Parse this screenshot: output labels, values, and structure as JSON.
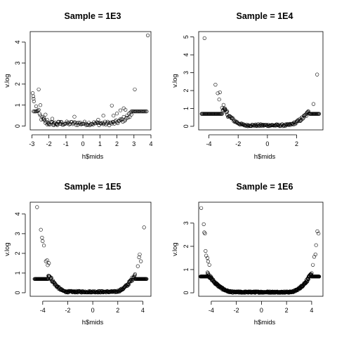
{
  "colors": {
    "background": "#ffffff",
    "ink": "#000000"
  },
  "chart_data": [
    {
      "type": "scatter",
      "title": "Sample = 1E3",
      "xlabel": "h$mids",
      "ylabel": "v.log",
      "xlim": [
        -3.1,
        4.0
      ],
      "ylim": [
        -0.18,
        4.5
      ],
      "xticks": [
        -3,
        -2,
        -1,
        0,
        1,
        2,
        3,
        4
      ],
      "yticks": [
        0,
        1,
        2,
        3,
        4
      ],
      "bin_width": 0.05,
      "edges": {
        "left_x": -2.9,
        "left_x_end": -2.75,
        "right_x": 2.85,
        "right_x_end": 3.75,
        "y": 0.7
      },
      "noise_amp": 0.3,
      "curve": {
        "base": 0.13,
        "left_start": -2.0,
        "left_scale": 0.75,
        "right_start": 1.5,
        "right_scale": 0.45
      },
      "points": [
        [
          -2.95,
          1.57
        ],
        [
          -2.92,
          1.42
        ],
        [
          -2.9,
          1.3
        ],
        [
          -2.88,
          1.18
        ],
        [
          -2.6,
          1.75
        ],
        [
          -2.5,
          1.0
        ],
        [
          -2.3,
          0.4
        ],
        [
          -2.2,
          0.55
        ],
        [
          -2.1,
          0.3
        ],
        [
          -2.0,
          0.12
        ],
        [
          -1.8,
          0.35
        ],
        [
          -1.7,
          0.05
        ],
        [
          -1.5,
          0.05
        ],
        [
          -1.3,
          0.2
        ],
        [
          -0.5,
          0.45
        ],
        [
          0.9,
          0.3
        ],
        [
          1.2,
          0.5
        ],
        [
          1.7,
          0.98
        ],
        [
          1.8,
          0.5
        ],
        [
          2.0,
          0.6
        ],
        [
          2.2,
          0.75
        ],
        [
          2.4,
          0.85
        ],
        [
          2.5,
          0.78
        ],
        [
          3.05,
          1.75
        ],
        [
          3.82,
          4.32
        ]
      ]
    },
    {
      "type": "scatter",
      "title": "Sample = 1E4",
      "xlabel": "h$mids",
      "ylabel": "v.log",
      "xlim": [
        -4.7,
        3.8
      ],
      "ylim": [
        -0.2,
        5.3
      ],
      "xticks": [
        -4,
        -2,
        0,
        2
      ],
      "yticks": [
        0,
        1,
        2,
        3,
        4,
        5
      ],
      "bin_width": 0.04,
      "edges": {
        "left_x": -4.5,
        "left_x_end": -3.1,
        "right_x": 2.9,
        "right_x_end": 3.55,
        "y": 0.7
      },
      "noise_amp": 0.2,
      "curve": {
        "base": 0.06,
        "left_start": -1.4,
        "left_scale": 1.0,
        "right_start": 1.2,
        "right_scale": 0.8
      },
      "points": [
        [
          -4.3,
          4.93
        ],
        [
          -3.55,
          2.33
        ],
        [
          -3.4,
          1.85
        ],
        [
          -3.25,
          1.9
        ],
        [
          -3.3,
          1.5
        ],
        [
          -3.0,
          1.2
        ],
        [
          -2.9,
          1.0
        ],
        [
          -2.75,
          0.85
        ],
        [
          2.8,
          0.85
        ],
        [
          3.15,
          1.25
        ],
        [
          3.4,
          2.9
        ]
      ]
    },
    {
      "type": "scatter",
      "title": "Sample = 1E5",
      "xlabel": "h$mids",
      "ylabel": "v.log",
      "xlim": [
        -5.0,
        4.65
      ],
      "ylim": [
        -0.18,
        4.6
      ],
      "xticks": [
        -4,
        -2,
        0,
        2,
        4
      ],
      "yticks": [
        0,
        1,
        2,
        3,
        4
      ],
      "bin_width": 0.03,
      "edges": {
        "left_x": -4.65,
        "left_x_end": -3.55,
        "right_x": 3.4,
        "right_x_end": 4.3,
        "y": 0.7
      },
      "noise_amp": 0.15,
      "curve": {
        "base": 0.05,
        "left_start": -2.0,
        "left_scale": 0.9,
        "right_start": 1.7,
        "right_scale": 0.9
      },
      "points": [
        [
          -4.45,
          4.35
        ],
        [
          -4.15,
          3.2
        ],
        [
          -4.05,
          2.8
        ],
        [
          -4.0,
          2.62
        ],
        [
          -3.9,
          2.4
        ],
        [
          -3.75,
          1.6
        ],
        [
          -3.65,
          1.65
        ],
        [
          -3.6,
          1.4
        ],
        [
          -3.5,
          1.5
        ],
        [
          3.6,
          1.35
        ],
        [
          3.7,
          1.8
        ],
        [
          3.75,
          1.95
        ],
        [
          3.85,
          1.6
        ],
        [
          4.1,
          3.32
        ]
      ]
    },
    {
      "type": "scatter",
      "title": "Sample = 1E6",
      "xlabel": "h$mids",
      "ylabel": "v.log",
      "xlim": [
        -5.0,
        4.9
      ],
      "ylim": [
        -0.15,
        3.9
      ],
      "xticks": [
        -4,
        -2,
        0,
        2,
        4
      ],
      "yticks": [
        0,
        1,
        2,
        3
      ],
      "bin_width": 0.02,
      "edges": {
        "left_x": -4.85,
        "left_x_end": -4.3,
        "right_x": 4.0,
        "right_x_end": 4.6,
        "y": 0.7
      },
      "noise_amp": 0.12,
      "curve": {
        "base": 0.03,
        "left_start": -2.2,
        "left_scale": 0.8,
        "right_start": 2.2,
        "right_scale": 0.8
      },
      "points": [
        [
          -4.8,
          3.65
        ],
        [
          -4.6,
          2.95
        ],
        [
          -4.55,
          2.6
        ],
        [
          -4.5,
          2.55
        ],
        [
          -4.45,
          1.8
        ],
        [
          -4.4,
          1.6
        ],
        [
          -4.3,
          1.5
        ],
        [
          -4.25,
          1.35
        ],
        [
          -4.15,
          1.2
        ],
        [
          4.1,
          1.2
        ],
        [
          4.2,
          1.55
        ],
        [
          4.3,
          1.65
        ],
        [
          4.35,
          2.05
        ],
        [
          4.45,
          2.65
        ],
        [
          4.55,
          2.55
        ]
      ]
    }
  ]
}
